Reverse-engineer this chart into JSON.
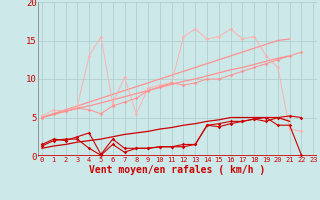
{
  "background_color": "#cce8e8",
  "grid_color": "#aacccc",
  "dark_red": "#cc0000",
  "salmon1": "#ff9090",
  "salmon2": "#ffb0b0",
  "xlabel": "Vent moyen/en rafales ( km/h )",
  "ylim": [
    0,
    20
  ],
  "xlim": [
    -0.3,
    23.3
  ],
  "yticks": [
    0,
    5,
    10,
    15,
    20
  ],
  "xticks": [
    0,
    1,
    2,
    3,
    4,
    5,
    6,
    7,
    8,
    9,
    10,
    11,
    12,
    13,
    14,
    15,
    16,
    17,
    18,
    19,
    20,
    21,
    22,
    23
  ],
  "series": {
    "dark_line1": [
      1.3,
      2.0,
      2.2,
      2.2,
      1.0,
      0.1,
      1.5,
      0.5,
      1.0,
      1.0,
      1.2,
      1.2,
      1.5,
      1.5,
      4.0,
      3.8,
      4.2,
      4.5,
      4.8,
      4.5,
      5.0,
      5.2,
      5.0,
      0.1
    ],
    "dark_line2": [
      1.5,
      2.2,
      2.0,
      2.5,
      3.0,
      0.2,
      2.2,
      1.0,
      1.0,
      1.0,
      1.2,
      1.2,
      1.2,
      1.5,
      4.0,
      4.2,
      4.5,
      4.5,
      4.8,
      5.0,
      4.0,
      4.0,
      0.1,
      0.3
    ],
    "dark_trend": [
      1.0,
      1.3,
      1.5,
      1.8,
      2.0,
      2.2,
      2.5,
      2.8,
      3.0,
      3.2,
      3.5,
      3.7,
      4.0,
      4.2,
      4.5,
      4.7,
      5.0,
      5.0,
      5.0,
      5.0,
      5.0,
      4.5,
      0.2,
      0.1
    ],
    "salmon_smooth": [
      5.0,
      5.5,
      5.8,
      6.2,
      6.0,
      5.5,
      6.5,
      7.0,
      7.5,
      8.5,
      9.0,
      9.5,
      9.2,
      9.5,
      10.0,
      10.0,
      10.5,
      11.0,
      11.5,
      12.0,
      12.5,
      13.0,
      13.5,
      3.5
    ],
    "salmon_jagged": [
      5.2,
      6.0,
      5.8,
      6.5,
      13.0,
      15.5,
      6.8,
      10.2,
      5.5,
      8.8,
      9.2,
      9.5,
      15.5,
      16.5,
      15.2,
      15.5,
      16.5,
      15.2,
      15.5,
      13.0,
      11.5,
      3.5,
      3.2,
      3.0
    ],
    "salmon_trend1": [
      5.0,
      5.5,
      6.0,
      6.5,
      7.0,
      7.5,
      8.0,
      8.5,
      9.0,
      9.5,
      10.0,
      10.5,
      11.0,
      11.5,
      12.0,
      12.5,
      13.0,
      13.5,
      14.0,
      14.5,
      15.0,
      15.2,
      15.2,
      3.2
    ],
    "salmon_trend2": [
      5.0,
      5.4,
      5.8,
      6.2,
      6.5,
      6.9,
      7.3,
      7.7,
      8.1,
      8.5,
      8.9,
      9.3,
      9.7,
      10.0,
      10.4,
      10.8,
      11.2,
      11.5,
      11.9,
      12.3,
      12.7,
      13.0,
      13.0,
      3.2
    ]
  }
}
